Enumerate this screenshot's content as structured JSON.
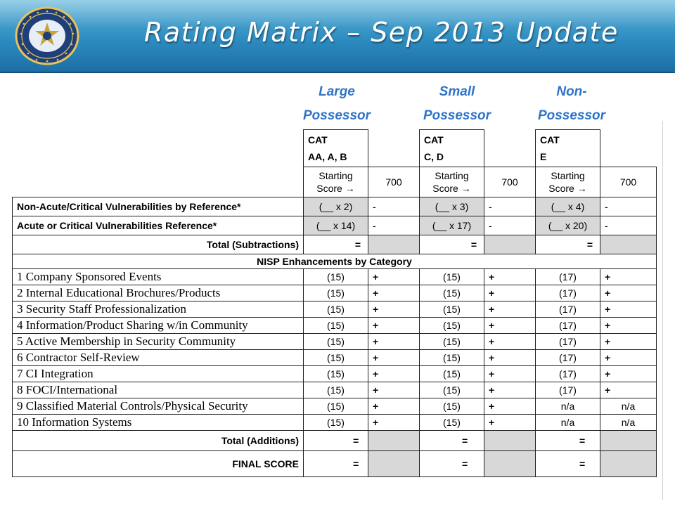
{
  "header": {
    "title": "Rating Matrix – Sep 2013 Update"
  },
  "column_groups": [
    {
      "line1": "Large",
      "line2": "Possessor"
    },
    {
      "line1": "Small",
      "line2": "Possessor"
    },
    {
      "line1": "Non-",
      "line2": "Possessor"
    }
  ],
  "categories": [
    {
      "line1": "CAT",
      "line2": "AA, A, B",
      "starting_label": "Starting",
      "starting_label2": "Score →",
      "score": "700"
    },
    {
      "line1": "CAT",
      "line2": "C, D",
      "starting_label": "Starting",
      "starting_label2": "Score →",
      "score": "700"
    },
    {
      "line1": "CAT",
      "line2": "E",
      "starting_label": "Starting",
      "starting_label2": "Score →",
      "score": "700"
    }
  ],
  "vulnerabilities": [
    {
      "label": "Non-Acute/Critical Vulnerabilities by Reference*",
      "values": [
        "(__ x 2)",
        "-",
        "(__ x 3)",
        "-",
        "(__ x 4)",
        "-"
      ]
    },
    {
      "label": "Acute or Critical Vulnerabilities Reference*",
      "values": [
        "(__ x 14)",
        "-",
        "(__ x 17)",
        "-",
        "(__ x 20)",
        "-"
      ]
    }
  ],
  "total_subtractions": {
    "label": "Total (Subtractions)",
    "symbol": "="
  },
  "enhancements_heading": "NISP Enhancements by Category",
  "enhancements": [
    {
      "label": "1 Company Sponsored Events",
      "values": [
        "(15)",
        "+",
        "(15)",
        "+",
        "(17)",
        "+"
      ]
    },
    {
      "label": "2 Internal Educational Brochures/Products",
      "values": [
        "(15)",
        "+",
        "(15)",
        "+",
        "(17)",
        "+"
      ]
    },
    {
      "label": "3 Security Staff Professionalization",
      "values": [
        "(15)",
        "+",
        "(15)",
        "+",
        "(17)",
        "+"
      ]
    },
    {
      "label": "4 Information/Product Sharing w/in Community",
      "values": [
        "(15)",
        "+",
        "(15)",
        "+",
        "(17)",
        "+"
      ]
    },
    {
      "label": "5 Active Membership in Security Community",
      "values": [
        "(15)",
        "+",
        "(15)",
        "+",
        "(17)",
        "+"
      ]
    },
    {
      "label": "6 Contractor Self-Review",
      "values": [
        "(15)",
        "+",
        "(15)",
        "+",
        "(17)",
        "+"
      ]
    },
    {
      "label": "7 CI Integration",
      "values": [
        "(15)",
        "+",
        "(15)",
        "+",
        "(17)",
        "+"
      ]
    },
    {
      "label": "8 FOCI/International",
      "values": [
        "(15)",
        "+",
        "(15)",
        "+",
        "(17)",
        "+"
      ]
    },
    {
      "label": "9 Classified Material Controls/Physical Security",
      "values": [
        "(15)",
        "+",
        "(15)",
        "+",
        "n/a",
        "n/a"
      ]
    },
    {
      "label": "10 Information Systems",
      "values": [
        "(15)",
        "+",
        "(15)",
        "+",
        "n/a",
        "n/a"
      ]
    }
  ],
  "total_additions": {
    "label": "Total (Additions)",
    "symbol": "="
  },
  "final_score": {
    "label": "FINAL SCORE",
    "symbol": "="
  },
  "colors": {
    "banner": "#2d8cc0",
    "heading_blue": "#2e74c9",
    "shaded_cell": "#d8d8d8"
  }
}
